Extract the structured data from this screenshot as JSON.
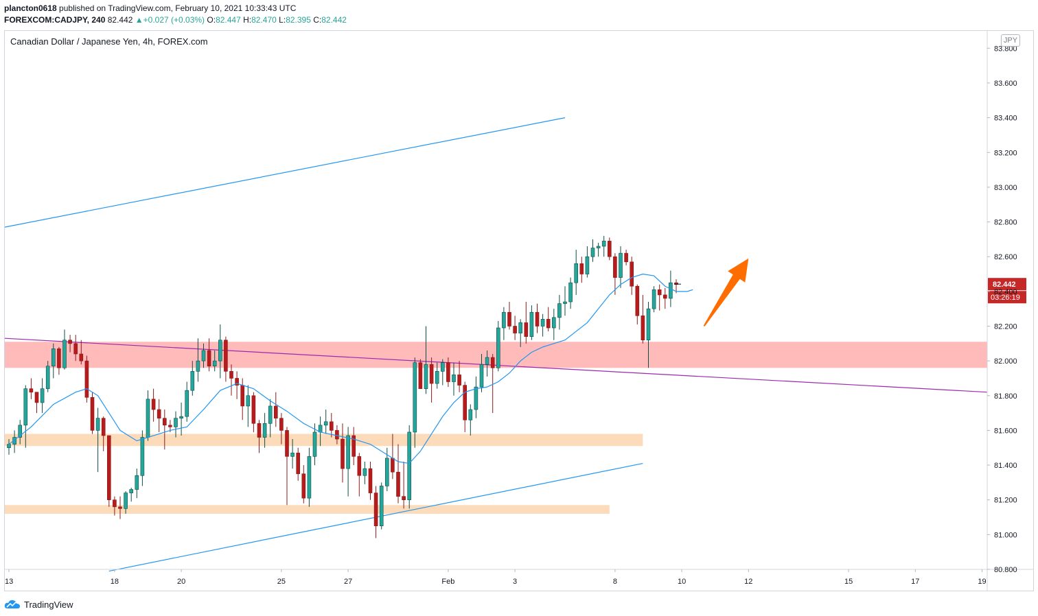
{
  "header": {
    "publisher": "plancton0618",
    "published_text": "published on TradingView.com, February 10, 2021 10:33:43 UTC",
    "symbol": "FOREXCOM:CADJPY, 240",
    "last": "82.442",
    "change": "+0.027 (+0.03%)",
    "open_label": "O:",
    "open": "82.447",
    "high_label": "H:",
    "high": "82.470",
    "low_label": "L:",
    "low": "82.395",
    "close_label": "C:",
    "close": "82.442"
  },
  "chart_title": "Canadian Dollar / Japanese Yen, 4h, FOREX.com",
  "currency_badge": "JPY",
  "footer": {
    "brand": "TradingView"
  },
  "colors": {
    "up": "#26a69a",
    "down": "#b71c1c",
    "ma": "#2196f3",
    "channel": "#2196f3",
    "trendline": "#9c27b0",
    "resistance_zone": "#ffb3b3",
    "support_zone": "#fcd9b6",
    "arrow": "#ff6d00",
    "price_label": "#c62828"
  },
  "chart_data": {
    "type": "candlestick",
    "symbol": "CADJPY",
    "timeframe": "4h",
    "ylim": [
      80.8,
      83.9
    ],
    "y_ticks": [
      "83.800",
      "83.600",
      "83.400",
      "83.200",
      "83.000",
      "82.800",
      "82.600",
      "82.400",
      "82.200",
      "82.000",
      "81.800",
      "81.600",
      "81.400",
      "81.200",
      "81.000",
      "80.800"
    ],
    "x_ticks": [
      {
        "label": "13",
        "bar": 0
      },
      {
        "label": "18",
        "bar": 19
      },
      {
        "label": "20",
        "bar": 31
      },
      {
        "label": "25",
        "bar": 49
      },
      {
        "label": "27",
        "bar": 61
      },
      {
        "label": "Feb",
        "bar": 79
      },
      {
        "label": "3",
        "bar": 91
      },
      {
        "label": "8",
        "bar": 109
      },
      {
        "label": "10",
        "bar": 121
      },
      {
        "label": "12",
        "bar": 133
      },
      {
        "label": "15",
        "bar": 151
      },
      {
        "label": "17",
        "bar": 163
      },
      {
        "label": "19",
        "bar": 175
      }
    ],
    "bar_count_visible": 176,
    "candles": [
      [
        81.5,
        81.55,
        81.46,
        81.52
      ],
      [
        81.52,
        81.6,
        81.47,
        81.56
      ],
      [
        81.56,
        81.66,
        81.52,
        81.63
      ],
      [
        81.63,
        81.86,
        81.5,
        81.84
      ],
      [
        81.84,
        81.9,
        81.78,
        81.82
      ],
      [
        81.82,
        81.8,
        81.7,
        81.76
      ],
      [
        81.76,
        81.9,
        81.7,
        81.84
      ],
      [
        81.84,
        82.0,
        81.82,
        81.97
      ],
      [
        81.97,
        82.1,
        81.9,
        82.07
      ],
      [
        82.07,
        82.08,
        81.92,
        81.96
      ],
      [
        81.96,
        82.18,
        81.95,
        82.12
      ],
      [
        82.12,
        82.15,
        82.05,
        82.1
      ],
      [
        82.1,
        82.15,
        82.0,
        82.04
      ],
      [
        82.04,
        82.12,
        81.98,
        82.0
      ],
      [
        82.0,
        82.03,
        81.76,
        81.79
      ],
      [
        81.79,
        81.82,
        81.58,
        81.6
      ],
      [
        81.6,
        81.73,
        81.36,
        81.67
      ],
      [
        81.67,
        81.68,
        81.48,
        81.57
      ],
      [
        81.57,
        81.57,
        81.16,
        81.2
      ],
      [
        81.2,
        81.22,
        81.11,
        81.16
      ],
      [
        81.16,
        81.22,
        81.09,
        81.15
      ],
      [
        81.15,
        81.25,
        81.12,
        81.24
      ],
      [
        81.24,
        81.27,
        81.19,
        81.26
      ],
      [
        81.26,
        81.38,
        81.21,
        81.34
      ],
      [
        81.34,
        81.6,
        81.28,
        81.56
      ],
      [
        81.56,
        81.83,
        81.54,
        81.78
      ],
      [
        81.78,
        81.84,
        81.65,
        81.72
      ],
      [
        81.72,
        81.78,
        81.59,
        81.67
      ],
      [
        81.67,
        81.72,
        81.49,
        81.63
      ],
      [
        81.63,
        81.66,
        81.59,
        81.62
      ],
      [
        81.62,
        81.71,
        81.56,
        81.67
      ],
      [
        81.67,
        81.76,
        81.57,
        81.68
      ],
      [
        81.68,
        81.88,
        81.65,
        81.83
      ],
      [
        81.83,
        82.0,
        81.8,
        81.94
      ],
      [
        81.94,
        82.13,
        81.88,
        82.0
      ],
      [
        82.0,
        82.1,
        81.96,
        82.06
      ],
      [
        82.06,
        82.13,
        81.94,
        81.97
      ],
      [
        81.97,
        82.06,
        81.94,
        82.0
      ],
      [
        82.0,
        82.21,
        81.9,
        82.12
      ],
      [
        82.12,
        82.14,
        81.88,
        81.94
      ],
      [
        81.94,
        81.98,
        81.8,
        81.9
      ],
      [
        81.9,
        81.94,
        81.78,
        81.86
      ],
      [
        81.86,
        81.9,
        81.66,
        81.74
      ],
      [
        81.74,
        81.86,
        81.62,
        81.8
      ],
      [
        81.8,
        81.82,
        81.59,
        81.64
      ],
      [
        81.64,
        81.66,
        81.47,
        81.56
      ],
      [
        81.56,
        81.7,
        81.5,
        81.64
      ],
      [
        81.64,
        81.78,
        81.56,
        81.74
      ],
      [
        81.74,
        81.82,
        81.62,
        81.67
      ],
      [
        81.67,
        81.7,
        81.52,
        81.6
      ],
      [
        81.6,
        81.62,
        81.17,
        81.45
      ],
      [
        81.45,
        81.55,
        81.38,
        81.47
      ],
      [
        81.47,
        81.5,
        81.31,
        81.35
      ],
      [
        81.35,
        81.4,
        81.18,
        81.21
      ],
      [
        81.21,
        81.5,
        81.16,
        81.45
      ],
      [
        81.45,
        81.64,
        81.4,
        81.59
      ],
      [
        81.59,
        81.68,
        81.51,
        81.63
      ],
      [
        81.63,
        81.72,
        81.58,
        81.65
      ],
      [
        81.65,
        81.7,
        81.56,
        81.6
      ],
      [
        81.6,
        81.63,
        81.52,
        81.55
      ],
      [
        81.55,
        81.64,
        81.3,
        81.38
      ],
      [
        81.38,
        81.62,
        81.22,
        81.57
      ],
      [
        81.57,
        81.62,
        81.4,
        81.45
      ],
      [
        81.45,
        81.47,
        81.22,
        81.34
      ],
      [
        81.34,
        81.42,
        81.29,
        81.38
      ],
      [
        81.38,
        81.42,
        81.2,
        81.24
      ],
      [
        81.24,
        81.28,
        80.98,
        81.05
      ],
      [
        81.05,
        81.3,
        81.03,
        81.28
      ],
      [
        81.28,
        81.5,
        81.25,
        81.44
      ],
      [
        81.44,
        81.58,
        81.32,
        81.36
      ],
      [
        81.36,
        81.52,
        81.18,
        81.22
      ],
      [
        81.22,
        81.42,
        81.15,
        81.2
      ],
      [
        81.2,
        81.63,
        81.15,
        81.59
      ],
      [
        81.59,
        82.02,
        81.5,
        81.99
      ],
      [
        81.99,
        82.01,
        81.84,
        81.84
      ],
      [
        81.84,
        82.2,
        81.81,
        81.98
      ],
      [
        81.98,
        82.02,
        81.76,
        81.87
      ],
      [
        81.87,
        81.99,
        81.84,
        81.94
      ],
      [
        81.94,
        82.01,
        81.86,
        81.99
      ],
      [
        81.99,
        82.02,
        81.85,
        81.88
      ],
      [
        81.88,
        81.99,
        81.8,
        81.92
      ],
      [
        81.92,
        82.0,
        81.82,
        81.86
      ],
      [
        81.86,
        81.88,
        81.59,
        81.66
      ],
      [
        81.66,
        81.75,
        81.57,
        81.72
      ],
      [
        81.72,
        81.91,
        81.67,
        81.85
      ],
      [
        81.85,
        82.04,
        81.82,
        81.98
      ],
      [
        81.98,
        82.06,
        81.91,
        82.02
      ],
      [
        82.02,
        82.04,
        81.7,
        81.96
      ],
      [
        81.96,
        82.23,
        81.94,
        82.19
      ],
      [
        82.19,
        82.31,
        82.12,
        82.28
      ],
      [
        82.28,
        82.34,
        82.18,
        82.2
      ],
      [
        82.2,
        82.26,
        82.12,
        82.16
      ],
      [
        82.16,
        82.24,
        82.08,
        82.22
      ],
      [
        82.22,
        82.34,
        82.1,
        82.14
      ],
      [
        82.14,
        82.32,
        82.12,
        82.28
      ],
      [
        82.28,
        82.33,
        82.16,
        82.2
      ],
      [
        82.2,
        82.27,
        82.14,
        82.24
      ],
      [
        82.24,
        82.31,
        82.17,
        82.19
      ],
      [
        82.19,
        82.3,
        82.12,
        82.25
      ],
      [
        82.25,
        82.38,
        82.18,
        82.33
      ],
      [
        82.33,
        82.43,
        82.26,
        82.34
      ],
      [
        82.34,
        82.48,
        82.3,
        82.45
      ],
      [
        82.45,
        82.64,
        82.38,
        82.56
      ],
      [
        82.56,
        82.6,
        82.45,
        82.5
      ],
      [
        82.5,
        82.66,
        82.48,
        82.6
      ],
      [
        82.6,
        82.7,
        82.57,
        82.65
      ],
      [
        82.65,
        82.68,
        82.6,
        82.66
      ],
      [
        82.66,
        82.72,
        82.6,
        82.69
      ],
      [
        82.69,
        82.71,
        82.58,
        82.6
      ],
      [
        82.6,
        82.62,
        82.38,
        82.48
      ],
      [
        82.48,
        82.66,
        82.42,
        82.62
      ],
      [
        82.62,
        82.64,
        82.55,
        82.57
      ],
      [
        82.57,
        82.6,
        82.38,
        82.43
      ],
      [
        82.43,
        82.44,
        82.21,
        82.26
      ],
      [
        82.26,
        82.38,
        82.1,
        82.12
      ],
      [
        82.12,
        82.34,
        81.96,
        82.3
      ],
      [
        82.3,
        82.43,
        82.28,
        82.41
      ],
      [
        82.41,
        82.44,
        82.29,
        82.38
      ],
      [
        82.38,
        82.42,
        82.3,
        82.36
      ],
      [
        82.36,
        82.52,
        82.31,
        82.45
      ],
      [
        82.45,
        82.47,
        82.39,
        82.44
      ]
    ],
    "ema": [
      [
        0,
        81.52
      ],
      [
        4,
        81.62
      ],
      [
        8,
        81.75
      ],
      [
        12,
        81.82
      ],
      [
        14,
        81.84
      ],
      [
        16,
        81.8
      ],
      [
        18,
        81.7
      ],
      [
        20,
        81.6
      ],
      [
        23,
        81.54
      ],
      [
        26,
        81.57
      ],
      [
        29,
        81.6
      ],
      [
        32,
        81.62
      ],
      [
        35,
        81.72
      ],
      [
        38,
        81.83
      ],
      [
        41,
        81.87
      ],
      [
        44,
        81.84
      ],
      [
        47,
        81.77
      ],
      [
        50,
        81.71
      ],
      [
        53,
        81.64
      ],
      [
        56,
        81.59
      ],
      [
        59,
        81.57
      ],
      [
        62,
        81.55
      ],
      [
        65,
        81.52
      ],
      [
        68,
        81.46
      ],
      [
        70,
        81.42
      ],
      [
        72,
        81.41
      ],
      [
        74,
        81.48
      ],
      [
        76,
        81.58
      ],
      [
        78,
        81.68
      ],
      [
        80,
        81.76
      ],
      [
        82,
        81.82
      ],
      [
        84,
        81.84
      ],
      [
        86,
        81.85
      ],
      [
        88,
        81.88
      ],
      [
        90,
        81.93
      ],
      [
        92,
        82.0
      ],
      [
        94,
        82.05
      ],
      [
        96,
        82.08
      ],
      [
        98,
        82.1
      ],
      [
        100,
        82.12
      ],
      [
        102,
        82.17
      ],
      [
        104,
        82.22
      ],
      [
        106,
        82.3
      ],
      [
        108,
        82.38
      ],
      [
        110,
        82.44
      ],
      [
        112,
        82.48
      ],
      [
        114,
        82.5
      ],
      [
        116,
        82.49
      ],
      [
        118,
        82.43
      ],
      [
        120,
        82.4
      ],
      [
        122,
        82.4
      ],
      [
        123,
        82.41
      ]
    ],
    "upper_channel": [
      [
        -1,
        82.77
      ],
      [
        100,
        83.4
      ]
    ],
    "lower_channel": [
      [
        18,
        80.79
      ],
      [
        114,
        81.41
      ]
    ],
    "trendline": [
      [
        -1,
        82.13
      ],
      [
        176,
        81.82
      ]
    ],
    "resistance_zone": {
      "bar_from": -1,
      "bar_to": 176,
      "y_low": 81.96,
      "y_high": 82.11
    },
    "support_zones": [
      {
        "bar_from": -1,
        "bar_to": 114,
        "y_low": 81.51,
        "y_high": 81.58
      },
      {
        "bar_from": -1,
        "bar_to": 108,
        "y_low": 81.12,
        "y_high": 81.17
      }
    ],
    "arrow": {
      "from": [
        125,
        82.2
      ],
      "to": [
        133,
        82.59
      ]
    },
    "price_label": "82.442",
    "countdown_label": "03:26:19"
  }
}
